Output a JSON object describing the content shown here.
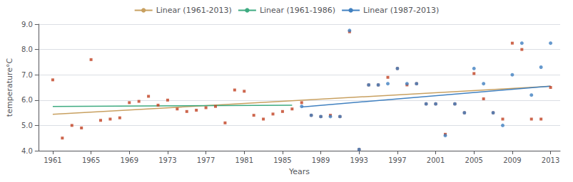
{
  "chart_data": {
    "type": "scatter",
    "xlabel": "Years",
    "ylabel": "temperature°C",
    "xlim": [
      1959.5,
      2014.0
    ],
    "xticks": [
      1961,
      1965,
      1969,
      1973,
      1977,
      1981,
      1985,
      1989,
      1993,
      1997,
      2001,
      2005,
      2009,
      2013
    ],
    "ylim": [
      4.0,
      9.0
    ],
    "yticks": [
      {
        "value": 4.0,
        "label": "4.0"
      },
      {
        "value": 5.0,
        "label": "5.0"
      },
      {
        "value": 6.0,
        "label": "6.0"
      },
      {
        "value": 7.0,
        "label": "7.0"
      },
      {
        "value": 8.0,
        "label": "8.0"
      },
      {
        "value": 9.0,
        "label": "9.0"
      }
    ],
    "grid": true,
    "legend": "top",
    "series": [
      {
        "type": "scatter",
        "color": "#C04020",
        "marker": "square",
        "x": [
          1961,
          1962,
          1963,
          1964,
          1965,
          1966,
          1967,
          1968,
          1969,
          1970,
          1971,
          1972,
          1973,
          1974,
          1975,
          1976,
          1977,
          1978,
          1979,
          1980,
          1981,
          1982,
          1983,
          1984,
          1985,
          1986,
          1987,
          1988,
          1989,
          1990,
          1991,
          1992,
          1993,
          1994,
          1995,
          1996,
          1997,
          1998,
          1999,
          2000,
          2001,
          2002,
          2003,
          2004,
          2005,
          2006,
          2007,
          2008,
          2009,
          2010,
          2011,
          2012,
          2013
        ],
        "values": [
          6.8,
          4.5,
          5.0,
          4.9,
          7.6,
          5.2,
          5.25,
          5.3,
          5.9,
          5.95,
          6.15,
          5.8,
          6.0,
          5.65,
          5.55,
          5.6,
          5.7,
          5.75,
          5.1,
          6.4,
          6.35,
          5.4,
          5.25,
          5.45,
          5.55,
          5.65,
          5.9,
          5.4,
          5.35,
          5.4,
          5.35,
          8.7,
          4.05,
          6.6,
          6.6,
          6.9,
          7.25,
          6.6,
          6.65,
          5.85,
          5.85,
          4.65,
          5.85,
          5.5,
          7.05,
          6.05,
          5.5,
          5.25,
          8.25,
          8.0,
          5.25,
          5.25,
          6.5
        ]
      },
      {
        "type": "scatter",
        "color": "#4080C0",
        "marker": "circle",
        "x": [
          1987,
          1988,
          1989,
          1990,
          1991,
          1992,
          1993,
          1994,
          1995,
          1996,
          1997,
          1998,
          1999,
          2000,
          2001,
          2002,
          2003,
          2004,
          2005,
          2006,
          2007,
          2008,
          2009,
          2010,
          2011,
          2012,
          2013
        ],
        "values": [
          5.75,
          5.4,
          5.35,
          5.35,
          5.35,
          8.75,
          4.05,
          6.6,
          6.6,
          6.65,
          7.25,
          6.65,
          6.65,
          5.85,
          5.85,
          4.6,
          5.85,
          5.5,
          7.25,
          6.65,
          5.5,
          5.0,
          7.0,
          8.25,
          6.2,
          7.3,
          8.25
        ]
      },
      {
        "name": "Linear (1961-2013)",
        "type": "line",
        "color": "#C8A060",
        "x": [
          1961,
          2013
        ],
        "values": [
          5.44,
          6.55
        ]
      },
      {
        "name": "Linear (1961-1986)",
        "type": "line",
        "color": "#3DAA80",
        "x": [
          1961,
          1986
        ],
        "values": [
          5.75,
          5.8
        ]
      },
      {
        "name": "Linear (1987-2013)",
        "type": "line",
        "color": "#4080C0",
        "x": [
          1987,
          2013
        ],
        "values": [
          5.73,
          6.55
        ]
      }
    ]
  }
}
